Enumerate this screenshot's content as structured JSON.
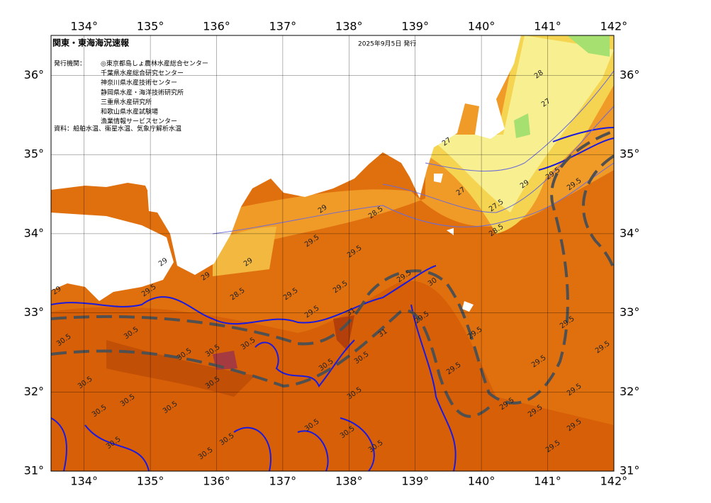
{
  "header": {
    "title": "関東・東海海況速報",
    "date": "2025年9月5日 発行",
    "issuer_label": "発行機関：",
    "issuers": [
      "◎東京都島しょ農林水産総合センター",
      "千葉県水産総合研究センター",
      "神奈川県水産技術センター",
      "静岡県水産・海洋技術研究所",
      "三重県水産研究所",
      "和歌山県水産試験場",
      "漁業情報サービスセンター"
    ],
    "source": "資料：船舶水温、衛星水温、気象庁解析水温"
  },
  "map": {
    "lon_ticks": [
      {
        "value": 134,
        "label": "134°"
      },
      {
        "value": 135,
        "label": "135°"
      },
      {
        "value": 136,
        "label": "136°"
      },
      {
        "value": 137,
        "label": "137°"
      },
      {
        "value": 138,
        "label": "138°"
      },
      {
        "value": 139,
        "label": "139°"
      },
      {
        "value": 140,
        "label": "140°"
      },
      {
        "value": 141,
        "label": "141°"
      },
      {
        "value": 142,
        "label": "142°"
      }
    ],
    "lat_ticks": [
      {
        "value": 36,
        "label": "36°"
      },
      {
        "value": 35,
        "label": "35°"
      },
      {
        "value": 34,
        "label": "34°"
      },
      {
        "value": 33,
        "label": "33°"
      },
      {
        "value": 32,
        "label": "32°"
      },
      {
        "value": 31,
        "label": "31°"
      }
    ],
    "contour_labels": [
      "29",
      "29.5",
      "28.5",
      "29",
      "29.5",
      "29.5",
      "29.5",
      "29.5",
      "30",
      "29.5",
      "29.5",
      "29.5",
      "29.5",
      "29.5",
      "29.5",
      "29.5",
      "29.5",
      "29.5",
      "29.5",
      "29.5",
      "29.5",
      "29.5",
      "29",
      "28.5",
      "27.5",
      "27",
      "27",
      "27",
      "28",
      "28.5",
      "29",
      "29.5",
      "29.5",
      "30.5",
      "30.5",
      "30.5",
      "30.5",
      "30.5",
      "30.5",
      "30.5",
      "30.5",
      "30.5",
      "30.5",
      "30.5",
      "30.5",
      "30.5",
      "30.5",
      "30.5",
      "30.5",
      "30.5",
      "30.5",
      "30.5",
      "31",
      "31",
      "29",
      "29"
    ]
  }
}
